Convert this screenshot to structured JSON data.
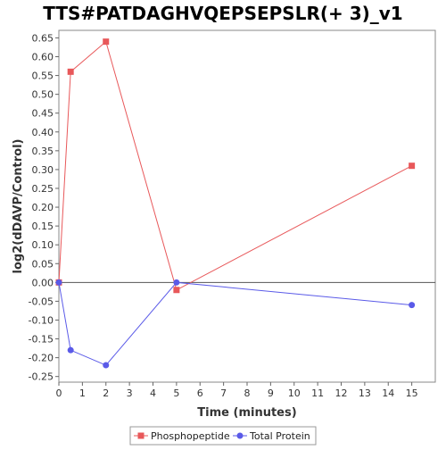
{
  "chart_data": {
    "type": "line",
    "title": "TTS#PATDAGHVQEPSEPSLR(+ 3)_v1",
    "xlabel": "Time (minutes)",
    "ylabel": "log2(dDAVP/Control)",
    "xlim": [
      0,
      16
    ],
    "ylim": [
      -0.265,
      0.67
    ],
    "x_ticks": [
      "0",
      "1",
      "2",
      "3",
      "4",
      "5",
      "6",
      "7",
      "8",
      "9",
      "10",
      "11",
      "12",
      "13",
      "14",
      "15"
    ],
    "y_ticks": [
      "0.65",
      "0.60",
      "0.55",
      "0.50",
      "0.45",
      "0.40",
      "0.35",
      "0.30",
      "0.25",
      "0.20",
      "0.15",
      "0.10",
      "0.05",
      "0.00",
      "-0.05",
      "-0.10",
      "-0.15",
      "-0.20",
      "-0.25"
    ],
    "grid": false,
    "legend_position": "bottom-center",
    "series": [
      {
        "name": "Phosphopeptide",
        "color": "#e8585a",
        "marker": "square",
        "x": [
          0,
          0.5,
          2,
          5,
          15
        ],
        "y": [
          0.0,
          0.56,
          0.64,
          -0.02,
          0.31
        ]
      },
      {
        "name": "Total Protein",
        "color": "#5a5ae8",
        "marker": "circle",
        "x": [
          0,
          0.5,
          2,
          5,
          15
        ],
        "y": [
          0.0,
          -0.18,
          -0.22,
          0.0,
          -0.06
        ]
      }
    ]
  }
}
